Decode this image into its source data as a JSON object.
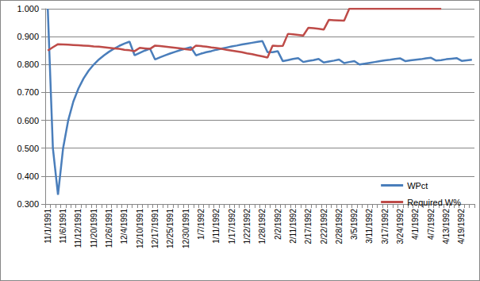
{
  "chart_data": {
    "type": "line",
    "categories": [
      "11/1/1991",
      null,
      null,
      "11/6/1991",
      null,
      null,
      "11/12/1991",
      null,
      null,
      "11/20/1991",
      null,
      null,
      "11/26/1991",
      null,
      null,
      "12/4/1991",
      null,
      null,
      "12/10/1991",
      null,
      null,
      "12/17/1991",
      null,
      null,
      "12/25/1991",
      null,
      null,
      "12/30/1991",
      null,
      null,
      "1/7/1992",
      null,
      null,
      "1/11/1992",
      null,
      null,
      "1/17/1992",
      null,
      null,
      "1/22/1992",
      null,
      null,
      "1/28/1992",
      null,
      null,
      "2/2/1992",
      null,
      null,
      "2/11/1992",
      null,
      null,
      "2/17/1992",
      null,
      null,
      "2/22/1992",
      null,
      null,
      "2/28/1992",
      null,
      null,
      "3/5/1992",
      null,
      null,
      "3/11/1992",
      null,
      null,
      "3/17/1992",
      null,
      null,
      "3/24/1992",
      null,
      null,
      "4/1/1992",
      null,
      null,
      "4/7/1992",
      null,
      null,
      "4/13/1992",
      null,
      null,
      "4/19/1992",
      null,
      null
    ],
    "series": [
      {
        "name": "WPct",
        "color": "#4a7ebb",
        "values": [
          1.0,
          0.5,
          0.333,
          0.5,
          0.6,
          0.667,
          0.714,
          0.75,
          0.778,
          0.8,
          0.818,
          0.833,
          0.846,
          0.857,
          0.867,
          0.875,
          0.882,
          0.833,
          0.842,
          0.85,
          0.857,
          0.818,
          0.826,
          0.833,
          0.84,
          0.846,
          0.852,
          0.857,
          0.862,
          0.833,
          0.839,
          0.844,
          0.848,
          0.853,
          0.857,
          0.861,
          0.865,
          0.868,
          0.872,
          0.875,
          0.878,
          0.881,
          0.884,
          0.844,
          0.844,
          0.848,
          0.812,
          0.816,
          0.82,
          0.823,
          0.809,
          0.813,
          0.816,
          0.82,
          0.807,
          0.811,
          0.814,
          0.818,
          0.805,
          0.809,
          0.812,
          0.8,
          0.803,
          0.806,
          0.809,
          0.812,
          0.815,
          0.817,
          0.82,
          0.822,
          0.812,
          0.815,
          0.817,
          0.819,
          0.822,
          0.824,
          0.814,
          0.816,
          0.819,
          0.821,
          0.823,
          0.813,
          0.815,
          0.817
        ]
      },
      {
        "name": "Required W%",
        "color": "#be4b48",
        "values": [
          0.85,
          0.862,
          0.873,
          0.872,
          0.871,
          0.87,
          0.869,
          0.868,
          0.867,
          0.865,
          0.864,
          0.862,
          0.86,
          0.858,
          0.856,
          0.853,
          0.851,
          0.848,
          0.86,
          0.858,
          0.856,
          0.868,
          0.866,
          0.864,
          0.862,
          0.86,
          0.858,
          0.855,
          0.853,
          0.868,
          0.866,
          0.864,
          0.861,
          0.859,
          0.856,
          0.853,
          0.85,
          0.847,
          0.844,
          0.84,
          0.837,
          0.833,
          0.829,
          0.825,
          0.868,
          0.866,
          0.867,
          0.91,
          0.908,
          0.906,
          0.904,
          0.932,
          0.93,
          0.928,
          0.925,
          0.96,
          0.959,
          0.958,
          0.957,
          1.0,
          1.0,
          1.0,
          1.0,
          1.0,
          1.0,
          1.0,
          1.0,
          1.0,
          1.0,
          1.0,
          1.0,
          1.0,
          1.0,
          1.0,
          1.0,
          1.0,
          1.0,
          1.0,
          null,
          null,
          null,
          null,
          null,
          null
        ]
      }
    ],
    "ylim": [
      0.3,
      1.0
    ],
    "yticks": [
      {
        "value": 0.3,
        "label": "0.300"
      },
      {
        "value": 0.4,
        "label": "0.400"
      },
      {
        "value": 0.5,
        "label": "0.500"
      },
      {
        "value": 0.6,
        "label": "0.600"
      },
      {
        "value": 0.7,
        "label": "0.700"
      },
      {
        "value": 0.8,
        "label": "0.800"
      },
      {
        "value": 0.9,
        "label": "0.900"
      },
      {
        "value": 1.0,
        "label": "1.000"
      }
    ],
    "grid": true,
    "legend": "right"
  }
}
